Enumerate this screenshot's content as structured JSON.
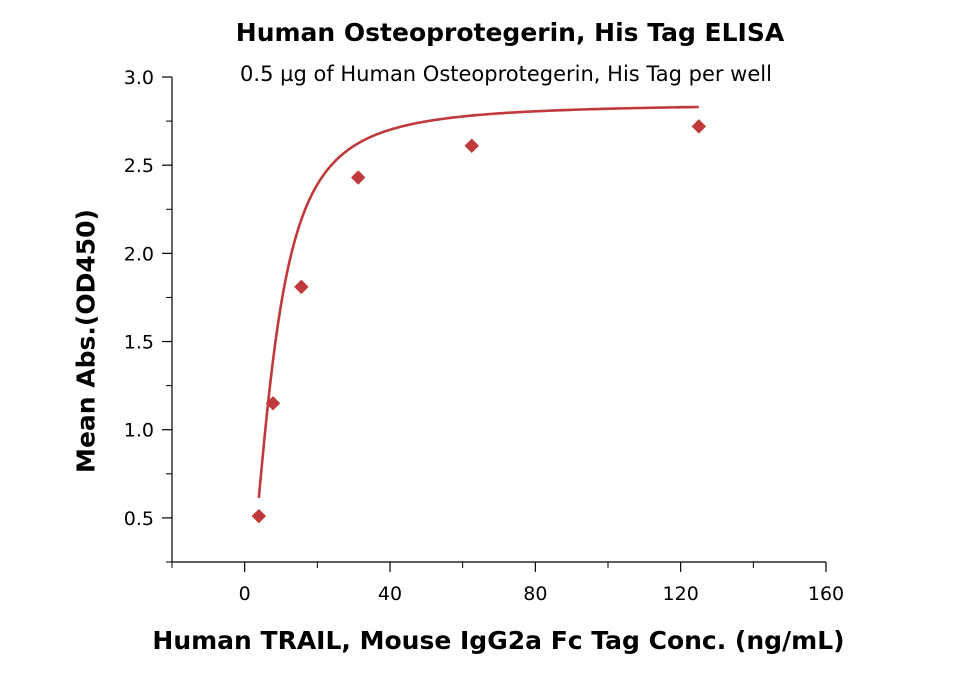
{
  "chart_data": {
    "type": "scatter",
    "title": "Human Osteoprotegerin, His Tag ELISA",
    "subtitle": "0.5 µg of Human Osteoprotegerin, His Tag per well",
    "xlabel": "Human TRAIL, Mouse IgG2a Fc Tag Conc. (ng/mL)",
    "ylabel": "Mean Abs.(OD450)",
    "xlim": [
      -20,
      160
    ],
    "ylim": [
      0.25,
      3.0
    ],
    "xticks": [
      0,
      40,
      80,
      120,
      160
    ],
    "yticks": [
      0.5,
      1.0,
      1.5,
      2.0,
      2.5,
      3.0
    ],
    "ytick_labels": [
      "0.5",
      "1.0",
      "1.5",
      "2.0",
      "2.5",
      "3.0"
    ],
    "grid": false,
    "legend": "none",
    "marker": "diamond",
    "color": "#c0393b",
    "points": [
      {
        "x": 3.9,
        "y": 0.51
      },
      {
        "x": 7.8,
        "y": 1.15
      },
      {
        "x": 15.6,
        "y": 1.81
      },
      {
        "x": 31.25,
        "y": 2.43
      },
      {
        "x": 62.5,
        "y": 2.61
      },
      {
        "x": 125,
        "y": 2.72
      }
    ],
    "fit_curve": {
      "type": "4PL",
      "bottom": 0.0,
      "top": 2.85,
      "ec50": 8.0,
      "hill": 1.8
    }
  }
}
